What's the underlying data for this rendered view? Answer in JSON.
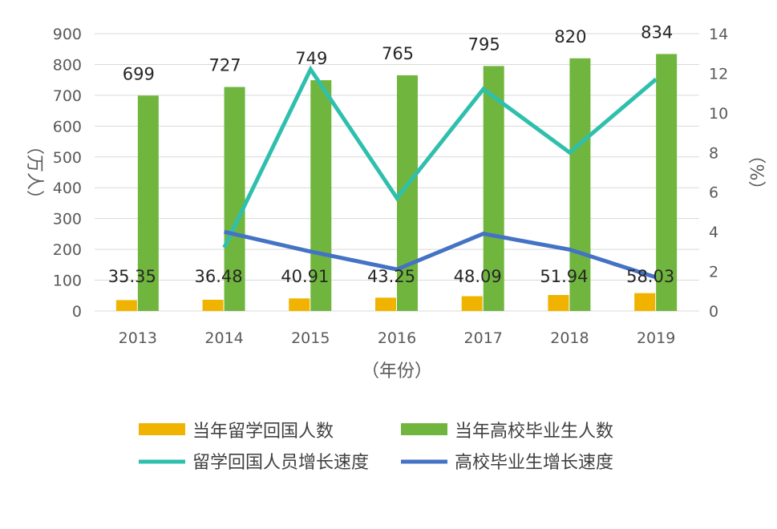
{
  "chart_data": {
    "type": "bar+line",
    "categories": [
      "2013",
      "2014",
      "2015",
      "2016",
      "2017",
      "2018",
      "2019"
    ],
    "bar_series": [
      {
        "name": "当年留学回国人数",
        "color": "#f0b400",
        "values": [
          35.35,
          36.48,
          40.91,
          43.25,
          48.09,
          51.94,
          58.03
        ],
        "labels": [
          "35.35",
          "36.48",
          "40.91",
          "43.25",
          "48.09",
          "51.94",
          "58.03"
        ]
      },
      {
        "name": "当年高校毕业生人数",
        "color": "#70b63e",
        "values": [
          699,
          727,
          749,
          765,
          795,
          820,
          834
        ],
        "labels": [
          "699",
          "727",
          "749",
          "765",
          "795",
          "820",
          "834"
        ]
      }
    ],
    "line_series": [
      {
        "name": "留学回国人员增长速度",
        "color": "#2fbfad",
        "axis": "right",
        "values": [
          null,
          3.2,
          12.2,
          5.7,
          11.2,
          8.0,
          11.7
        ]
      },
      {
        "name": "高校毕业生增长速度",
        "color": "#4472c4",
        "axis": "right",
        "values": [
          null,
          4.0,
          3.0,
          2.1,
          3.9,
          3.1,
          1.7
        ]
      }
    ],
    "y_left": {
      "label": "（万人）",
      "min": 0,
      "max": 900,
      "ticks": [
        "0",
        "100",
        "200",
        "300",
        "400",
        "500",
        "600",
        "700",
        "800",
        "900"
      ]
    },
    "y_right": {
      "label": "（%）",
      "min": 0,
      "max": 14,
      "ticks": [
        "0",
        "2",
        "4",
        "6",
        "8",
        "10",
        "12",
        "14"
      ]
    },
    "xlabel": "（年份）",
    "legend_position": "bottom",
    "grid": true
  }
}
